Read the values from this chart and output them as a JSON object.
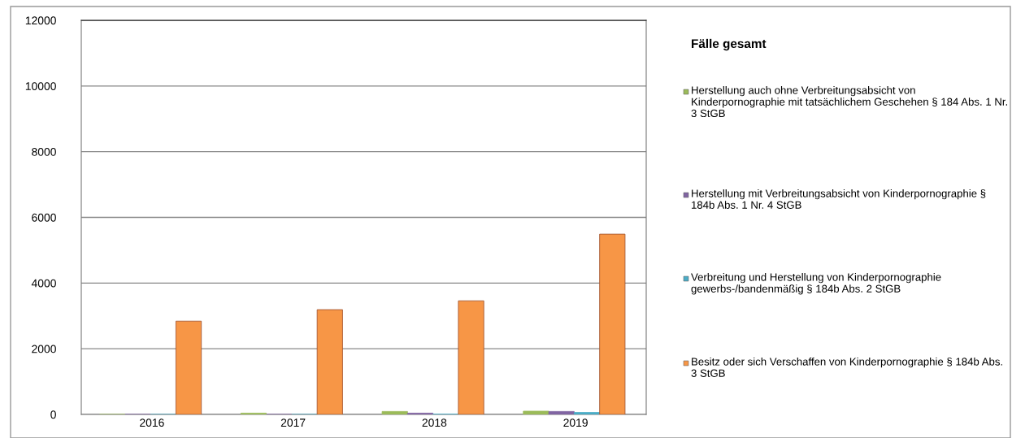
{
  "chart_data": {
    "type": "bar",
    "legend_title": "Fälle gesamt",
    "categories": [
      "2016",
      "2017",
      "2018",
      "2019"
    ],
    "series": [
      {
        "name": "Herstellung auch ohne Verbreitungsabsicht von Kinderpornographie mit tatsächlichem Geschehen § 184 Abs. 1 Nr. 3 StGB",
        "color": "#9bbb59",
        "values": [
          null,
          40,
          90,
          100
        ]
      },
      {
        "name": "Herstellung mit Verbreitungsabsicht von Kinderpornographie § 184b Abs. 1 Nr. 4 StGB",
        "color": "#8064a2",
        "values": [
          null,
          null,
          40,
          90
        ]
      },
      {
        "name": "Verbreitung und Herstellung von Kinderpornographie gewerbs-/bandenmäßig § 184b Abs. 2 StGB",
        "color": "#4bacc6",
        "values": [
          0,
          0,
          10,
          60
        ]
      },
      {
        "name": "Besitz oder sich Verschaffen von Kinderpornographie § 184b Abs. 3 StGB",
        "color": "#f79646",
        "values": [
          2840,
          3190,
          3460,
          5490
        ]
      }
    ],
    "ylim": [
      0,
      12000
    ],
    "yticks": [
      0,
      2000,
      4000,
      6000,
      8000,
      10000,
      12000
    ],
    "grid": "y",
    "legend": "right"
  }
}
